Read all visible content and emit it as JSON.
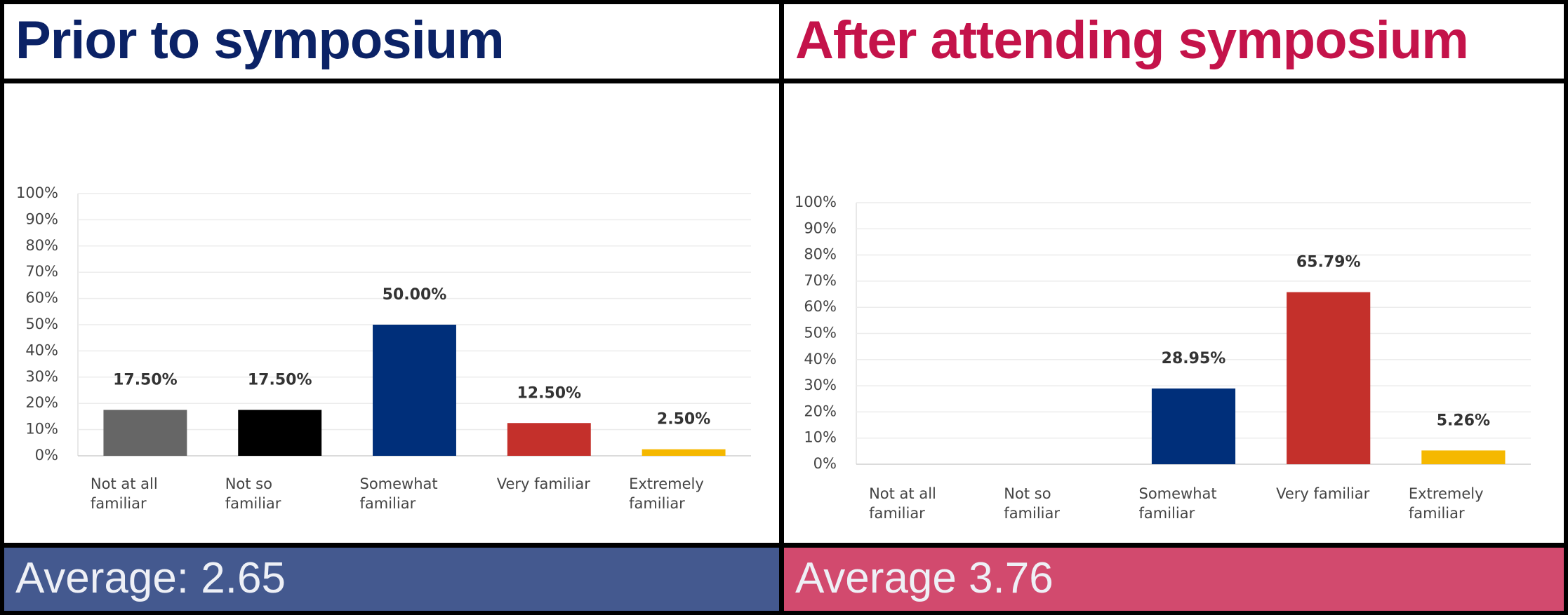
{
  "chart_data": [
    {
      "type": "bar",
      "title": "Prior to symposium",
      "note": "Average: 2.65",
      "categories": [
        "Not at all familiar",
        "Not so familiar",
        "Somewhat familiar",
        "Very familiar",
        "Extremely familiar"
      ],
      "values": [
        17.5,
        17.5,
        50,
        12.5,
        2.5
      ],
      "value_labels": [
        "17.50%",
        "17.50%",
        "50.00%",
        "12.50%",
        "2.50%"
      ],
      "colors": [
        "#666666",
        "#000000",
        "#002f7a",
        "#c4302b",
        "#f5b800"
      ],
      "ylim": [
        0,
        100
      ],
      "yticks": [
        {
          "value": 0,
          "label": "0%"
        },
        {
          "value": 10,
          "label": "10%"
        },
        {
          "value": 20,
          "label": "20%"
        },
        {
          "value": 30,
          "label": "30%"
        },
        {
          "value": 40,
          "label": "40%"
        },
        {
          "value": 50,
          "label": "50%"
        },
        {
          "value": 60,
          "label": "60%"
        },
        {
          "value": 70,
          "label": "70%"
        },
        {
          "value": 80,
          "label": "80%"
        },
        {
          "value": 90,
          "label": "90%"
        },
        {
          "value": 100,
          "label": "100%"
        }
      ],
      "grid": true
    },
    {
      "type": "bar",
      "title": "After attending symposium",
      "note": "Average 3.76",
      "categories": [
        "Not at all familiar",
        "Not so familiar",
        "Somewhat familiar",
        "Very familiar",
        "Extremely familiar"
      ],
      "values": [
        0,
        0,
        28.95,
        65.79,
        5.26
      ],
      "value_labels": [
        null,
        null,
        "28.95%",
        "65.79%",
        "5.26%"
      ],
      "colors": [
        "#666666",
        "#000000",
        "#002f7a",
        "#c4302b",
        "#f5b800"
      ],
      "ylim": [
        0,
        100
      ],
      "yticks": [
        {
          "value": 0,
          "label": "0%"
        },
        {
          "value": 10,
          "label": "10%"
        },
        {
          "value": 20,
          "label": "20%"
        },
        {
          "value": 30,
          "label": "30%"
        },
        {
          "value": 40,
          "label": "40%"
        },
        {
          "value": 50,
          "label": "50%"
        },
        {
          "value": 60,
          "label": "60%"
        },
        {
          "value": 70,
          "label": "70%"
        },
        {
          "value": 80,
          "label": "80%"
        },
        {
          "value": 90,
          "label": "90%"
        },
        {
          "value": 100,
          "label": "100%"
        }
      ],
      "grid": true
    }
  ]
}
